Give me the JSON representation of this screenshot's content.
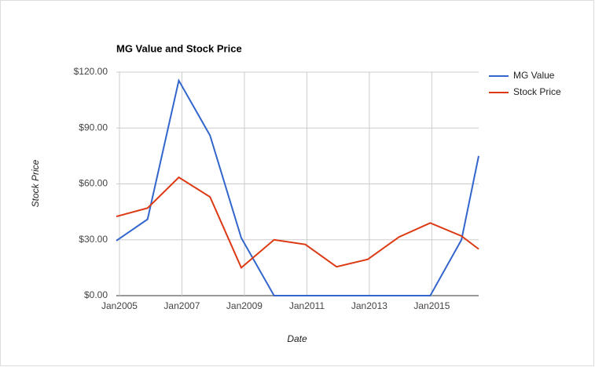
{
  "chart_data": {
    "type": "line",
    "title": "MG Value and Stock Price",
    "x_label": "Date",
    "y_label": "Stock Price",
    "x": [
      2004.9,
      2005.9,
      2006.9,
      2007.9,
      2008.9,
      2009.95,
      2010.95,
      2011.95,
      2012.95,
      2013.95,
      2014.95,
      2015.95,
      2016.5
    ],
    "series": [
      {
        "name": "MG Value",
        "color": "#3366cc",
        "values": [
          29.5,
          41,
          115.5,
          86,
          31,
          0,
          0,
          0,
          0,
          0,
          0,
          30,
          75
        ]
      },
      {
        "name": "Stock Price",
        "color": "#dc3912",
        "values": [
          42.5,
          47,
          63.5,
          53,
          15,
          30,
          27.5,
          15.5,
          19.5,
          31.5,
          39,
          32,
          25
        ]
      }
    ],
    "xlim": [
      2004.9,
      2016.5
    ],
    "xticks": [
      {
        "value": 2005,
        "label": "Jan2005"
      },
      {
        "value": 2007,
        "label": "Jan2007"
      },
      {
        "value": 2009,
        "label": "Jan2009"
      },
      {
        "value": 2011,
        "label": "Jan2011"
      },
      {
        "value": 2013,
        "label": "Jan2013"
      },
      {
        "value": 2015,
        "label": "Jan2015"
      }
    ],
    "ylim": [
      0,
      120
    ],
    "yticks": [
      {
        "value": 0,
        "label": "$0.00"
      },
      {
        "value": 30,
        "label": "$30.00"
      },
      {
        "value": 60,
        "label": "$60.00"
      },
      {
        "value": 90,
        "label": "$90.00"
      },
      {
        "value": 120,
        "label": "$120.00"
      }
    ],
    "grid": true,
    "legend": "right"
  }
}
